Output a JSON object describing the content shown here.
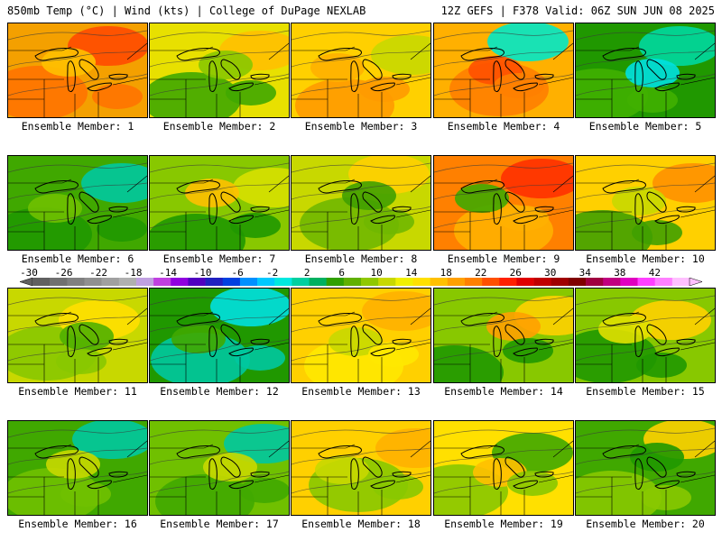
{
  "header": {
    "left": "850mb Temp (°C) | Wind (kts) | College of DuPage NEXLAB",
    "right": "12Z GEFS | F378 Valid: 06Z SUN JUN 08 2025"
  },
  "panel_label_prefix": "Ensemble Member: ",
  "members": [
    {
      "label": "Ensemble Member: 1",
      "member": 1,
      "palette": [
        "#f4a000",
        "#ff7300",
        "#ff4a00",
        "#ffc000"
      ]
    },
    {
      "label": "Ensemble Member: 2",
      "member": 2,
      "palette": [
        "#e8e000",
        "#40a800",
        "#ffc000",
        "#88c800"
      ]
    },
    {
      "label": "Ensemble Member: 3",
      "member": 3,
      "palette": [
        "#ffd000",
        "#ff9a00",
        "#c8d800",
        "#ffb000"
      ]
    },
    {
      "label": "Ensemble Member: 4",
      "member": 4,
      "palette": [
        "#ffb000",
        "#ff8000",
        "#00e8c8",
        "#ff5000"
      ]
    },
    {
      "label": "Ensemble Member: 5",
      "member": 5,
      "palette": [
        "#209800",
        "#40b000",
        "#00d8a0",
        "#00e0e0"
      ]
    },
    {
      "label": "Ensemble Member: 6",
      "member": 6,
      "palette": [
        "#40a800",
        "#209800",
        "#00c8a0",
        "#70c000"
      ]
    },
    {
      "label": "Ensemble Member: 7",
      "member": 7,
      "palette": [
        "#88c800",
        "#209800",
        "#d8e000",
        "#ffc000"
      ]
    },
    {
      "label": "Ensemble Member: 8",
      "member": 8,
      "palette": [
        "#c8d800",
        "#70b800",
        "#ffd000",
        "#40a000"
      ]
    },
    {
      "label": "Ensemble Member: 9",
      "member": 9,
      "palette": [
        "#ff8000",
        "#ffb000",
        "#ff3000",
        "#40a800"
      ]
    },
    {
      "label": "Ensemble Member: 10",
      "member": 10,
      "palette": [
        "#ffd000",
        "#40a000",
        "#ff9000",
        "#c8d800"
      ]
    },
    {
      "label": "Ensemble Member: 11",
      "member": 11,
      "palette": [
        "#c8d800",
        "#88c800",
        "#ffe000",
        "#50b000"
      ]
    },
    {
      "label": "Ensemble Member: 12",
      "member": 12,
      "palette": [
        "#209800",
        "#00c8a0",
        "#00e0e0",
        "#40a800"
      ]
    },
    {
      "label": "Ensemble Member: 13",
      "member": 13,
      "palette": [
        "#ffd000",
        "#ffe800",
        "#ffb000",
        "#c8d800"
      ]
    },
    {
      "label": "Ensemble Member: 14",
      "member": 14,
      "palette": [
        "#88c800",
        "#209800",
        "#ffd000",
        "#ffa000"
      ]
    },
    {
      "label": "Ensemble Member: 15",
      "member": 15,
      "palette": [
        "#88c800",
        "#209800",
        "#ffd000",
        "#e0e000"
      ]
    },
    {
      "label": "Ensemble Member: 16",
      "member": 16,
      "palette": [
        "#40a800",
        "#70c000",
        "#00c8a0",
        "#c8d800"
      ]
    },
    {
      "label": "Ensemble Member: 17",
      "member": 17,
      "palette": [
        "#70c000",
        "#40a800",
        "#00c8a0",
        "#c8d800"
      ]
    },
    {
      "label": "Ensemble Member: 18",
      "member": 18,
      "palette": [
        "#ffd000",
        "#88c800",
        "#ffb000",
        "#c8d800"
      ]
    },
    {
      "label": "Ensemble Member: 19",
      "member": 19,
      "palette": [
        "#ffe000",
        "#88c800",
        "#40a800",
        "#ffc000"
      ]
    },
    {
      "label": "Ensemble Member: 20",
      "member": 20,
      "palette": [
        "#40a800",
        "#88c800",
        "#ffd000",
        "#209800"
      ]
    }
  ],
  "colorbar": {
    "labels": [
      "-30",
      "-26",
      "-22",
      "-18",
      "-14",
      "-10",
      "-6",
      "-2",
      "2",
      "6",
      "10",
      "14",
      "18",
      "22",
      "26",
      "30",
      "34",
      "38",
      "42"
    ],
    "colors": [
      "#606060",
      "#707070",
      "#808080",
      "#909090",
      "#a0a0a0",
      "#b0b0b0",
      "#c0a0e0",
      "#c040e0",
      "#9000e0",
      "#5000c0",
      "#2020c0",
      "#0040e0",
      "#0090ff",
      "#00c8ff",
      "#00e8e0",
      "#00d0a0",
      "#00b060",
      "#30a000",
      "#60b000",
      "#90c800",
      "#c8d800",
      "#f0f000",
      "#ffe000",
      "#ffc000",
      "#ffa000",
      "#ff8000",
      "#ff5000",
      "#ff2000",
      "#e00000",
      "#c00000",
      "#a00000",
      "#800000",
      "#a00040",
      "#c00080",
      "#e000c0",
      "#ff40ff",
      "#ff80ff",
      "#ffc0ff"
    ]
  }
}
